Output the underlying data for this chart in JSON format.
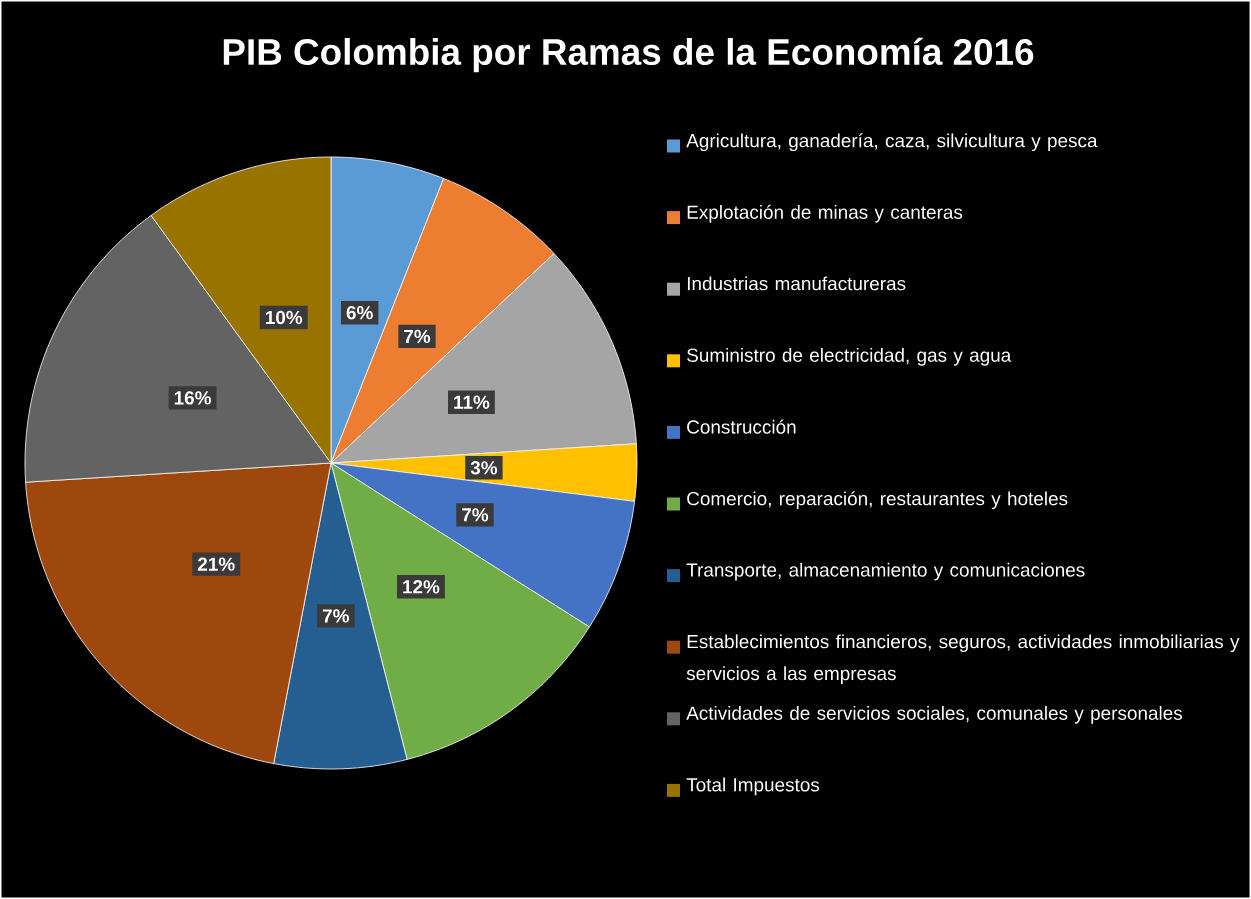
{
  "chart_data": {
    "type": "pie",
    "title": "PIB Colombia por Ramas de la Economía 2016",
    "categories": [
      "Agricultura, ganadería, caza, silvicultura y pesca",
      "Explotación de minas y canteras",
      "Industrias manufactureras",
      "Suministro de electricidad, gas y agua",
      "Construcción",
      "Comercio, reparación, restaurantes y hoteles",
      "Transporte, almacenamiento y comunicaciones",
      "Establecimientos financieros, seguros, actividades inmobiliarias y servicios a las empresas",
      "Actividades de servicios sociales, comunales y personales",
      "Total Impuestos"
    ],
    "values": [
      6,
      7,
      11,
      3,
      7,
      12,
      7,
      21,
      16,
      10
    ],
    "colors": [
      "#5b9bd5",
      "#ed7d31",
      "#a5a5a5",
      "#ffc000",
      "#4472c4",
      "#70ad47",
      "#255e91",
      "#9e480e",
      "#636363",
      "#997300"
    ],
    "value_labels": [
      "6%",
      "7%",
      "11%",
      "3%",
      "7%",
      "12%",
      "7%",
      "21%",
      "16%",
      "10%"
    ],
    "legend": "right"
  }
}
